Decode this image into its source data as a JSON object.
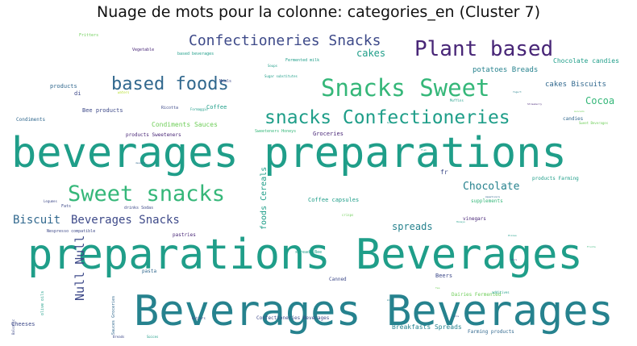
{
  "title": "Nuage de mots pour la colonne: categories_en (Cluster 7)",
  "colors": {
    "purple": "#482677",
    "indigo": "#3e4a89",
    "blue": "#31688e",
    "teal": "#26828e",
    "green": "#1f9e89",
    "green2": "#35b779",
    "lime": "#6ece58",
    "yellow": "#b5de2b"
  },
  "words": [
    {
      "text": "beverages preparations",
      "color": "green"
    },
    {
      "text": "preparations Beverages",
      "color": "green"
    },
    {
      "text": "Beverages Beverages",
      "color": "teal"
    },
    {
      "text": "Snacks Sweet",
      "color": "green2"
    },
    {
      "text": "snacks Confectioneries",
      "color": "green"
    },
    {
      "text": "Sweet snacks",
      "color": "green2"
    },
    {
      "text": "Plant based",
      "color": "purple"
    },
    {
      "text": "based foods",
      "color": "blue"
    },
    {
      "text": "Confectioneries Snacks",
      "color": "indigo"
    },
    {
      "text": "Beverages Snacks",
      "color": "indigo"
    },
    {
      "text": "Biscuit",
      "color": "blue"
    },
    {
      "text": "Chocolate",
      "color": "teal"
    },
    {
      "text": "Null Null",
      "color": "indigo"
    },
    {
      "text": "Cocoa",
      "color": "green2"
    },
    {
      "text": "cakes",
      "color": "green"
    },
    {
      "text": "spreads",
      "color": "teal"
    },
    {
      "text": "foods Cereals",
      "color": "green"
    },
    {
      "text": "potatoes Breads",
      "color": "teal"
    },
    {
      "text": "cakes Biscuits",
      "color": "blue"
    },
    {
      "text": "Chocolate candies",
      "color": "green"
    },
    {
      "text": "Condiments Sauces",
      "color": "lime"
    },
    {
      "text": "Coffee capsules",
      "color": "green"
    },
    {
      "text": "Bee products",
      "color": "indigo"
    },
    {
      "text": "Groceries",
      "color": "purple"
    },
    {
      "text": "Breakfasts Spreads",
      "color": "teal"
    },
    {
      "text": "Farming products",
      "color": "blue"
    },
    {
      "text": "Dairies Fermented",
      "color": "lime"
    },
    {
      "text": "pastries",
      "color": "purple"
    },
    {
      "text": "Beers",
      "color": "indigo"
    },
    {
      "text": "candies",
      "color": "blue"
    },
    {
      "text": "Cheeses",
      "color": "indigo"
    },
    {
      "text": "vinegars",
      "color": "purple"
    },
    {
      "text": "supplements",
      "color": "green2"
    },
    {
      "text": "Coffee",
      "color": "green"
    },
    {
      "text": "products Farming",
      "color": "green"
    },
    {
      "text": "Confectioneries Beverages",
      "color": "indigo"
    },
    {
      "text": "Canned",
      "color": "indigo"
    },
    {
      "text": "Condiments",
      "color": "blue"
    },
    {
      "text": "products",
      "color": "blue"
    },
    {
      "text": "based beverages",
      "color": "green"
    },
    {
      "text": "products Sweeteners",
      "color": "purple"
    },
    {
      "text": "Vegetable",
      "color": "purple"
    },
    {
      "text": "Fritters",
      "color": "lime"
    },
    {
      "text": "Meals",
      "color": "indigo"
    },
    {
      "text": "Fermented milk",
      "color": "green"
    },
    {
      "text": "Sweeteners Honeys",
      "color": "green2"
    },
    {
      "text": "Sugar substitutes",
      "color": "green"
    },
    {
      "text": "pasta",
      "color": "blue"
    },
    {
      "text": "Nespresso compatible",
      "color": "indigo"
    },
    {
      "text": "drinks Sodas",
      "color": "indigo"
    },
    {
      "text": "Fats",
      "color": "indigo"
    },
    {
      "text": "Ricotta",
      "color": "indigo"
    },
    {
      "text": "Soups",
      "color": "green"
    },
    {
      "text": "Muffins",
      "color": "green"
    },
    {
      "text": "Sweet Beverages",
      "color": "lime"
    },
    {
      "text": "Formaggio",
      "color": "green"
    },
    {
      "text": "waters",
      "color": "yellow"
    },
    {
      "text": "olive oils",
      "color": "green"
    },
    {
      "text": "Sauces Groceries",
      "color": "blue"
    },
    {
      "text": "spreads Bee",
      "color": "green"
    },
    {
      "text": "additives",
      "color": "green"
    },
    {
      "text": "crisps",
      "color": "lime"
    },
    {
      "text": "Breads",
      "color": "indigo"
    },
    {
      "text": "Spices",
      "color": "green"
    },
    {
      "text": "Butters",
      "color": "indigo"
    },
    {
      "text": "Balsamic",
      "color": "indigo"
    },
    {
      "text": "Legumes",
      "color": "indigo"
    },
    {
      "text": "Strawberry",
      "color": "purple"
    },
    {
      "text": "Avocado",
      "color": "lime"
    },
    {
      "text": "Yogurt",
      "color": "teal"
    },
    {
      "text": "dessert",
      "color": "blue"
    },
    {
      "text": "Appetizers",
      "color": "blue"
    },
    {
      "text": "Fish",
      "color": "green"
    },
    {
      "text": "Nuts",
      "color": "green"
    },
    {
      "text": "di",
      "color": "indigo"
    },
    {
      "text": "fr",
      "color": "indigo"
    },
    {
      "text": "Tea",
      "color": "lime"
    },
    {
      "text": "Pasta",
      "color": "blue"
    },
    {
      "text": "Honeys",
      "color": "green"
    },
    {
      "text": "Fruits",
      "color": "green2"
    },
    {
      "text": "Bars",
      "color": "indigo"
    },
    {
      "text": "milk",
      "color": "teal"
    },
    {
      "text": "oils",
      "color": "indigo"
    },
    {
      "text": "Pizzas",
      "color": "green"
    }
  ]
}
